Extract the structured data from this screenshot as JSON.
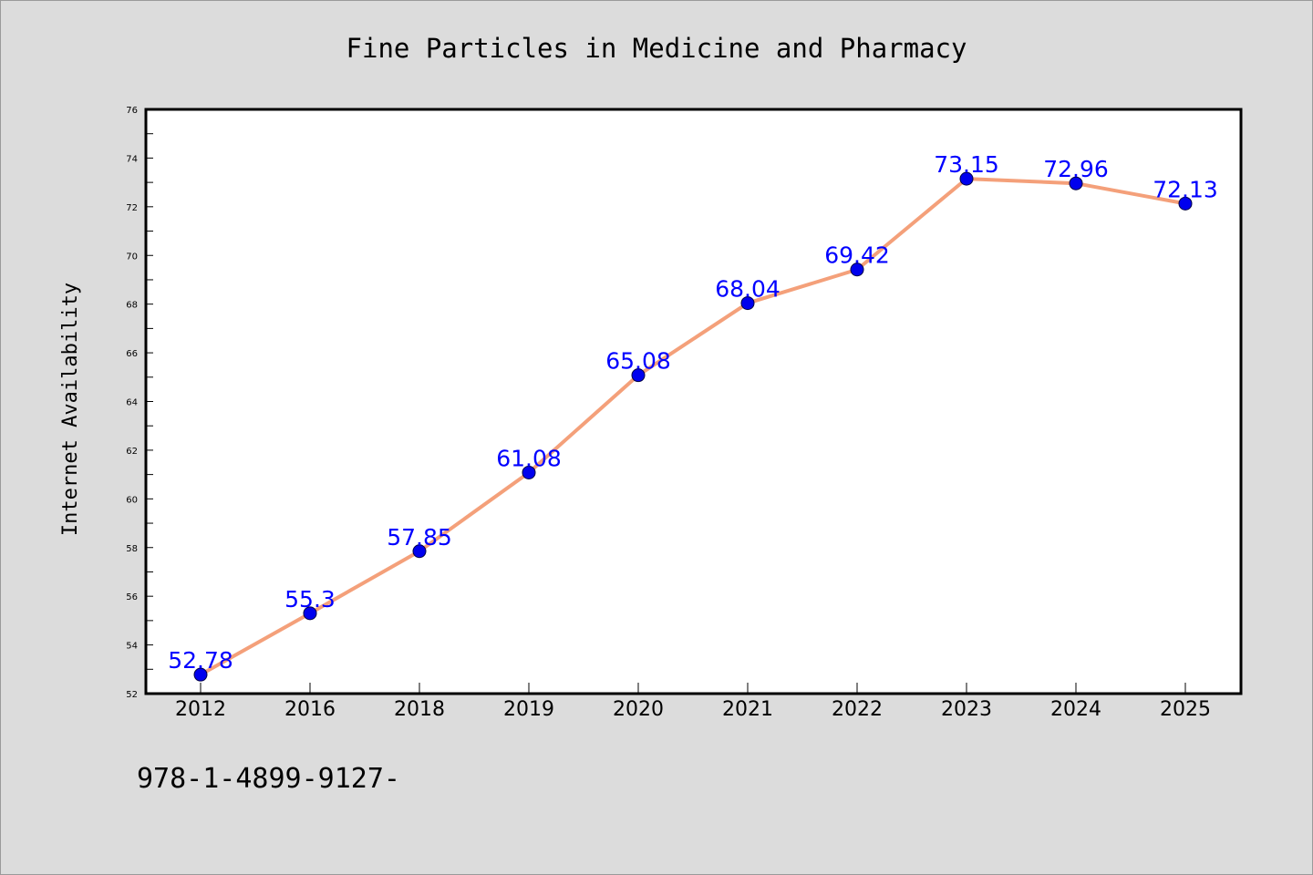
{
  "chart_data": {
    "type": "line",
    "title": "Fine Particles in Medicine and Pharmacy",
    "xlabel": "",
    "ylabel": "Internet Availability",
    "categories": [
      "2012",
      "2016",
      "2018",
      "2019",
      "2020",
      "2021",
      "2022",
      "2023",
      "2024",
      "2025"
    ],
    "series": [
      {
        "values": [
          52.78,
          55.3,
          57.85,
          61.08,
          65.08,
          68.04,
          69.42,
          73.15,
          72.96,
          72.13
        ],
        "data_labels": [
          "52.78",
          "55.3",
          "57.85",
          "61.08",
          "65.08",
          "68.04",
          "69.42",
          "73.15",
          "72.96",
          "72.13"
        ]
      }
    ],
    "ylim": [
      52,
      76
    ],
    "y_ticks": [
      52,
      54,
      56,
      58,
      60,
      62,
      64,
      66,
      68,
      70,
      72,
      74,
      76
    ],
    "grid": false,
    "legend": "none",
    "line_color": "#f4a07a",
    "marker_color": "#0000ee",
    "label_color": "#0000ff",
    "plot_background": "#ffffff",
    "figure_background": "#dcdcdc"
  },
  "footer": {
    "text": "978-1-4899-9127-"
  }
}
